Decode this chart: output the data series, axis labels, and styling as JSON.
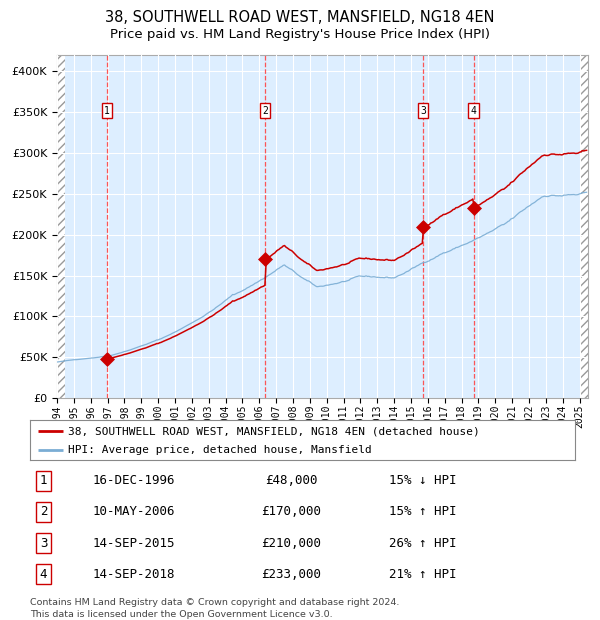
{
  "title": "38, SOUTHWELL ROAD WEST, MANSFIELD, NG18 4EN",
  "subtitle": "Price paid vs. HM Land Registry's House Price Index (HPI)",
  "legend_property": "38, SOUTHWELL ROAD WEST, MANSFIELD, NG18 4EN (detached house)",
  "legend_hpi": "HPI: Average price, detached house, Mansfield",
  "footer1": "Contains HM Land Registry data © Crown copyright and database right 2024.",
  "footer2": "This data is licensed under the Open Government Licence v3.0.",
  "transactions": [
    {
      "num": 1,
      "date": "16-DEC-1996",
      "price": 48000,
      "pct": "15%",
      "dir": "↓"
    },
    {
      "num": 2,
      "date": "10-MAY-2006",
      "price": 170000,
      "pct": "15%",
      "dir": "↑"
    },
    {
      "num": 3,
      "date": "14-SEP-2015",
      "price": 210000,
      "pct": "26%",
      "dir": "↑"
    },
    {
      "num": 4,
      "date": "14-SEP-2018",
      "price": 233000,
      "pct": "21%",
      "dir": "↑"
    }
  ],
  "transaction_dates_decimal": [
    1996.96,
    2006.36,
    2015.71,
    2018.71
  ],
  "transaction_prices": [
    48000,
    170000,
    210000,
    233000
  ],
  "ylim": [
    0,
    420000
  ],
  "yticks": [
    0,
    50000,
    100000,
    150000,
    200000,
    250000,
    300000,
    350000,
    400000
  ],
  "xlim_start": 1994.0,
  "xlim_end": 2025.5,
  "property_color": "#cc0000",
  "hpi_color": "#7aadd4",
  "vline_color": "#ff4444",
  "background_color": "#ddeeff",
  "grid_color": "#ffffff",
  "title_fontsize": 10.5,
  "subtitle_fontsize": 9.5,
  "axis_fontsize": 8,
  "legend_fontsize": 8,
  "table_fontsize": 9
}
